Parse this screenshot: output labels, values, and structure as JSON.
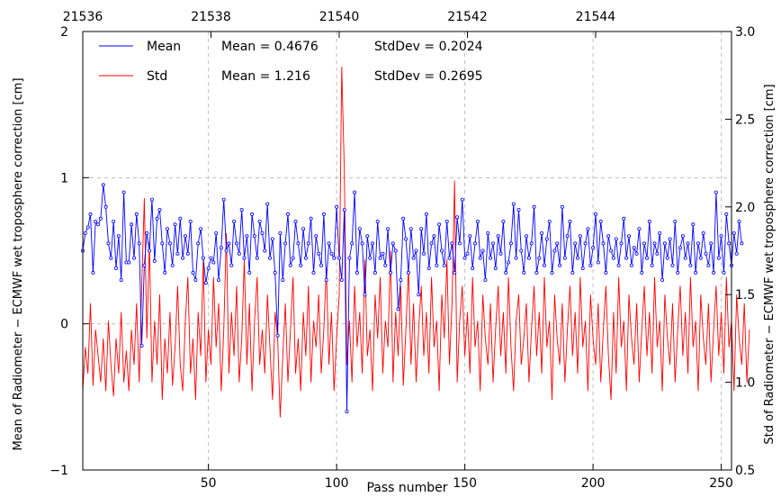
{
  "chart_data": {
    "type": "line",
    "title": "",
    "xlabel": "Pass number",
    "ylabel_left": "Mean of Radiometer − ECMWF wet troposphere correction [cm]",
    "ylabel_right": "Std of Radiometer − ECMWF wet troposphere correction [cm]",
    "xlim": [
      1,
      254
    ],
    "ylim_left": [
      -1,
      2
    ],
    "ylim_right": [
      0.5,
      3.0
    ],
    "grid": true,
    "x_ticks": [
      50,
      100,
      150,
      200,
      250
    ],
    "x_tick_labels": [
      "50",
      "100",
      "150",
      "200",
      "250"
    ],
    "y_left_ticks": [
      -1,
      0,
      1,
      2
    ],
    "y_left_tick_labels": [
      "−1",
      "0",
      "1",
      "2"
    ],
    "y_right_ticks": [
      0.5,
      1.0,
      1.5,
      2.0,
      2.5,
      3.0
    ],
    "y_right_tick_labels": [
      "0.5",
      "1.0",
      "1.5",
      "2.0",
      "2.5",
      "3.0"
    ],
    "top_axis": {
      "ticks": [
        1,
        51,
        101,
        151,
        201
      ],
      "labels": [
        "21536",
        "21538",
        "21540",
        "21542",
        "21544"
      ]
    },
    "legend": {
      "placement": "top-left",
      "entries": [
        {
          "name": "Mean",
          "color": "#0000ff",
          "stat1": "Mean = 0.4676",
          "stat2": "StdDev = 0.2024"
        },
        {
          "name": "Std",
          "color": "#ff0000",
          "stat1": "Mean = 1.216",
          "stat2": "StdDev = 0.2695"
        }
      ]
    },
    "series": [
      {
        "name": "Mean",
        "axis": "left",
        "color": "#0000ff",
        "marker": "circle",
        "values": [
          0.5,
          0.62,
          0.66,
          0.75,
          0.35,
          0.7,
          0.68,
          0.72,
          0.95,
          0.8,
          0.55,
          0.45,
          0.7,
          0.38,
          0.6,
          0.3,
          0.9,
          0.42,
          0.42,
          0.68,
          0.45,
          0.75,
          0.55,
          -0.15,
          0.4,
          0.62,
          0.5,
          0.85,
          0.43,
          0.72,
          0.78,
          0.55,
          0.35,
          0.65,
          0.55,
          0.4,
          0.68,
          0.48,
          0.72,
          0.45,
          0.6,
          0.48,
          0.7,
          0.35,
          0.3,
          0.55,
          0.65,
          0.45,
          0.28,
          0.38,
          0.45,
          0.42,
          0.62,
          0.3,
          0.52,
          0.85,
          0.5,
          0.55,
          0.4,
          0.7,
          0.55,
          0.48,
          0.78,
          0.45,
          0.6,
          0.35,
          0.75,
          0.6,
          0.45,
          0.7,
          0.62,
          0.5,
          0.82,
          0.45,
          0.58,
          0.35,
          -0.08,
          0.62,
          0.3,
          0.55,
          0.75,
          0.4,
          0.45,
          0.7,
          0.55,
          0.4,
          0.65,
          0.45,
          0.55,
          0.72,
          0.35,
          0.6,
          0.48,
          0.4,
          0.75,
          0.3,
          0.55,
          0.48,
          0.45,
          0.8,
          0.45,
          0.3,
          0.78,
          -0.6,
          0.45,
          0.55,
          0.9,
          0.35,
          0.65,
          0.55,
          0.2,
          0.6,
          0.45,
          0.55,
          0.35,
          0.7,
          0.45,
          0.48,
          0.4,
          0.65,
          0.35,
          0.55,
          0.5,
          0.1,
          0.3,
          0.72,
          0.58,
          0.35,
          0.65,
          0.45,
          0.5,
          0.2,
          0.65,
          0.48,
          0.75,
          0.38,
          0.55,
          0.6,
          0.4,
          0.68,
          0.5,
          0.4,
          0.7,
          0.45,
          0.55,
          0.35,
          0.73,
          0.55,
          0.85,
          0.45,
          0.48,
          0.6,
          0.38,
          0.55,
          0.7,
          0.45,
          0.5,
          0.3,
          0.62,
          0.45,
          0.55,
          0.38,
          0.6,
          0.48,
          0.7,
          0.35,
          0.42,
          0.55,
          0.82,
          0.45,
          0.78,
          0.5,
          0.35,
          0.6,
          0.45,
          0.55,
          0.8,
          0.35,
          0.45,
          0.62,
          0.4,
          0.58,
          0.7,
          0.35,
          0.5,
          0.55,
          0.4,
          0.8,
          0.45,
          0.6,
          0.7,
          0.35,
          0.55,
          0.45,
          0.6,
          0.38,
          0.55,
          0.65,
          0.4,
          0.52,
          0.75,
          0.42,
          0.7,
          0.55,
          0.35,
          0.6,
          0.5,
          0.45,
          0.58,
          0.4,
          0.55,
          0.72,
          0.45,
          0.6,
          0.4,
          0.52,
          0.48,
          0.65,
          0.35,
          0.55,
          0.45,
          0.7,
          0.4,
          0.55,
          0.48,
          0.62,
          0.3,
          0.55,
          0.45,
          0.58,
          0.4,
          0.7,
          0.35,
          0.52,
          0.6,
          0.45,
          0.55,
          0.4,
          0.68,
          0.35,
          0.55,
          0.45,
          0.62,
          0.48,
          0.4,
          0.55,
          0.35,
          0.9,
          0.45,
          0.6,
          0.35,
          0.75,
          0.55,
          0.4,
          0.62,
          0.48,
          0.7,
          0.55
        ]
      },
      {
        "name": "Std",
        "axis": "right",
        "color": "#ff0000",
        "marker": "none",
        "values": [
          0.95,
          1.2,
          1.05,
          1.45,
          0.98,
          1.3,
          1.15,
          1.0,
          1.25,
          0.95,
          1.35,
          1.1,
          0.92,
          1.25,
          1.05,
          1.4,
          1.0,
          1.18,
          0.95,
          1.3,
          1.1,
          1.45,
          1.0,
          1.55,
          2.05,
          1.25,
          1.8,
          1.0,
          1.35,
          1.1,
          1.5,
          0.9,
          1.25,
          1.05,
          1.4,
          0.98,
          1.2,
          1.55,
          1.1,
          0.95,
          1.35,
          1.6,
          1.05,
          1.25,
          0.9,
          1.4,
          1.15,
          1.7,
          1.0,
          1.3,
          1.1,
          1.6,
          1.2,
          1.45,
          0.95,
          1.3,
          1.85,
          1.05,
          1.4,
          1.15,
          1.55,
          1.0,
          1.25,
          1.7,
          1.1,
          1.45,
          0.95,
          1.35,
          1.6,
          1.1,
          1.3,
          1.05,
          1.5,
          1.2,
          0.9,
          1.4,
          1.25,
          0.8,
          1.15,
          1.45,
          1.0,
          1.3,
          1.6,
          1.05,
          1.25,
          0.95,
          1.4,
          1.15,
          1.55,
          1.0,
          1.35,
          1.2,
          1.5,
          1.05,
          1.3,
          1.65,
          1.1,
          1.4,
          0.95,
          1.25,
          1.5,
          2.8,
          2.2,
          1.1,
          1.35,
          1.0,
          1.55,
          1.2,
          1.4,
          1.05,
          1.7,
          1.15,
          1.3,
          0.95,
          1.5,
          1.25,
          1.6,
          1.05,
          1.35,
          1.2,
          1.75,
          1.0,
          1.4,
          1.15,
          1.55,
          0.98,
          1.3,
          1.65,
          1.1,
          1.45,
          1.0,
          1.3,
          1.55,
          1.15,
          1.4,
          1.05,
          1.6,
          1.2,
          1.35,
          0.95,
          1.5,
          1.25,
          1.7,
          1.1,
          1.45,
          2.15,
          1.0,
          1.35,
          1.55,
          1.15,
          1.4,
          1.05,
          1.6,
          1.2,
          1.35,
          0.95,
          1.5,
          1.25,
          1.1,
          1.45,
          1.0,
          1.3,
          1.55,
          1.15,
          1.4,
          1.05,
          1.6,
          1.2,
          0.95,
          1.35,
          1.5,
          1.1,
          1.25,
          1.45,
          1.0,
          1.3,
          1.55,
          1.15,
          1.4,
          1.05,
          1.6,
          1.2,
          1.35,
          0.9,
          1.5,
          1.25,
          1.1,
          1.45,
          1.0,
          1.3,
          1.55,
          1.15,
          1.4,
          1.05,
          1.6,
          1.2,
          1.35,
          0.95,
          1.5,
          1.25,
          1.1,
          1.45,
          1.0,
          1.3,
          1.55,
          1.15,
          0.9,
          1.4,
          1.05,
          1.6,
          1.2,
          1.35,
          0.95,
          1.5,
          1.25,
          1.1,
          1.45,
          1.0,
          1.3,
          1.55,
          1.15,
          1.4,
          1.05,
          1.6,
          1.2,
          1.35,
          0.95,
          1.5,
          1.25,
          1.1,
          1.45,
          1.0,
          1.3,
          1.55,
          1.15,
          1.4,
          1.05,
          1.6,
          1.2,
          1.35,
          0.95,
          1.5,
          1.25,
          1.1,
          1.45,
          1.0,
          1.3,
          1.55,
          1.15,
          1.4,
          1.05,
          1.6,
          1.2,
          1.35,
          0.95,
          1.5,
          1.25,
          1.1,
          1.45,
          1.0,
          1.3
        ]
      }
    ]
  }
}
